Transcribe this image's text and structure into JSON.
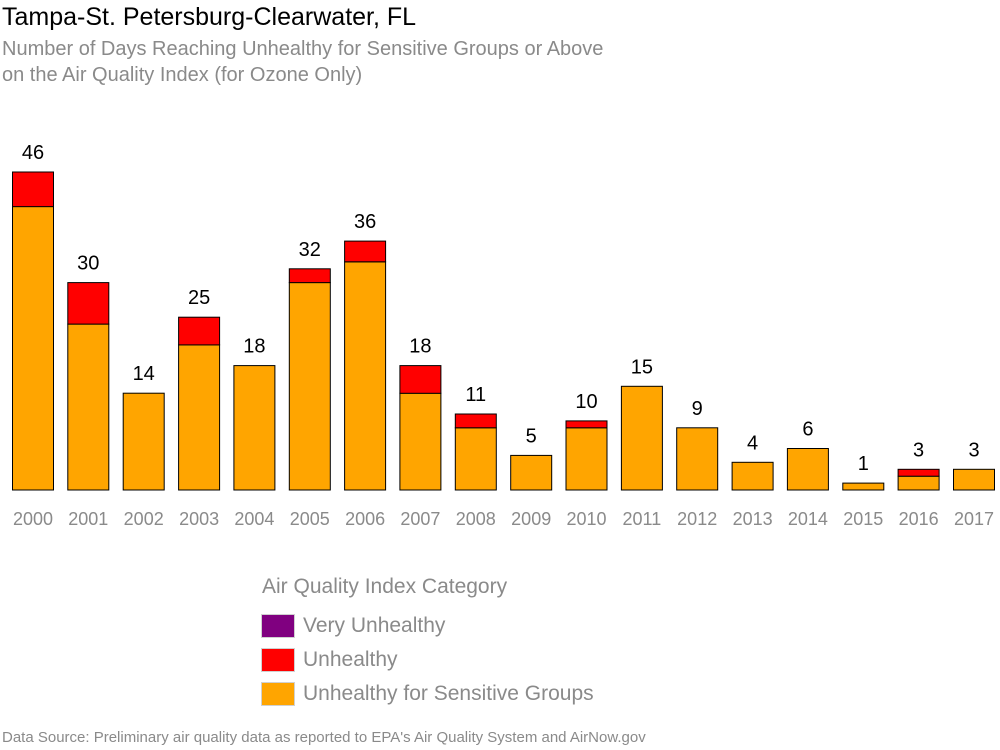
{
  "header": {
    "title": "Tampa-St. Petersburg-Clearwater, FL",
    "subtitle_line1": "Number of Days Reaching Unhealthy for Sensitive Groups or Above",
    "subtitle_line2": "on the Air Quality Index (for Ozone Only)"
  },
  "chart_data": {
    "type": "bar",
    "stacked": true,
    "categories": [
      "2000",
      "2001",
      "2002",
      "2003",
      "2004",
      "2005",
      "2006",
      "2007",
      "2008",
      "2009",
      "2010",
      "2011",
      "2012",
      "2013",
      "2014",
      "2015",
      "2016",
      "2017"
    ],
    "series": [
      {
        "name": "Unhealthy for Sensitive Groups",
        "color": "#FFA500",
        "values": [
          41,
          24,
          14,
          21,
          18,
          30,
          33,
          14,
          9,
          5,
          9,
          15,
          9,
          4,
          6,
          1,
          2,
          3
        ]
      },
      {
        "name": "Unhealthy",
        "color": "#FF0000",
        "values": [
          5,
          6,
          0,
          4,
          0,
          2,
          3,
          4,
          2,
          0,
          1,
          0,
          0,
          0,
          0,
          0,
          1,
          0
        ]
      },
      {
        "name": "Very Unhealthy",
        "color": "#800080",
        "values": [
          0,
          0,
          0,
          0,
          0,
          0,
          0,
          0,
          0,
          0,
          0,
          0,
          0,
          0,
          0,
          0,
          0,
          0
        ]
      }
    ],
    "totals": [
      46,
      30,
      14,
      25,
      18,
      32,
      36,
      18,
      11,
      5,
      10,
      15,
      9,
      4,
      6,
      1,
      3,
      3
    ],
    "ylim": [
      0,
      46
    ],
    "grid": false,
    "legend_placement": "bottom"
  },
  "legend": {
    "title": "Air Quality Index Category",
    "items": [
      {
        "label": "Very Unhealthy",
        "color": "#800080"
      },
      {
        "label": "Unhealthy",
        "color": "#FF0000"
      },
      {
        "label": "Unhealthy for Sensitive Groups",
        "color": "#FFA500"
      }
    ]
  },
  "footer": {
    "source": "Data Source: Preliminary air quality data as reported to EPA's Air Quality System and AirNow.gov"
  }
}
